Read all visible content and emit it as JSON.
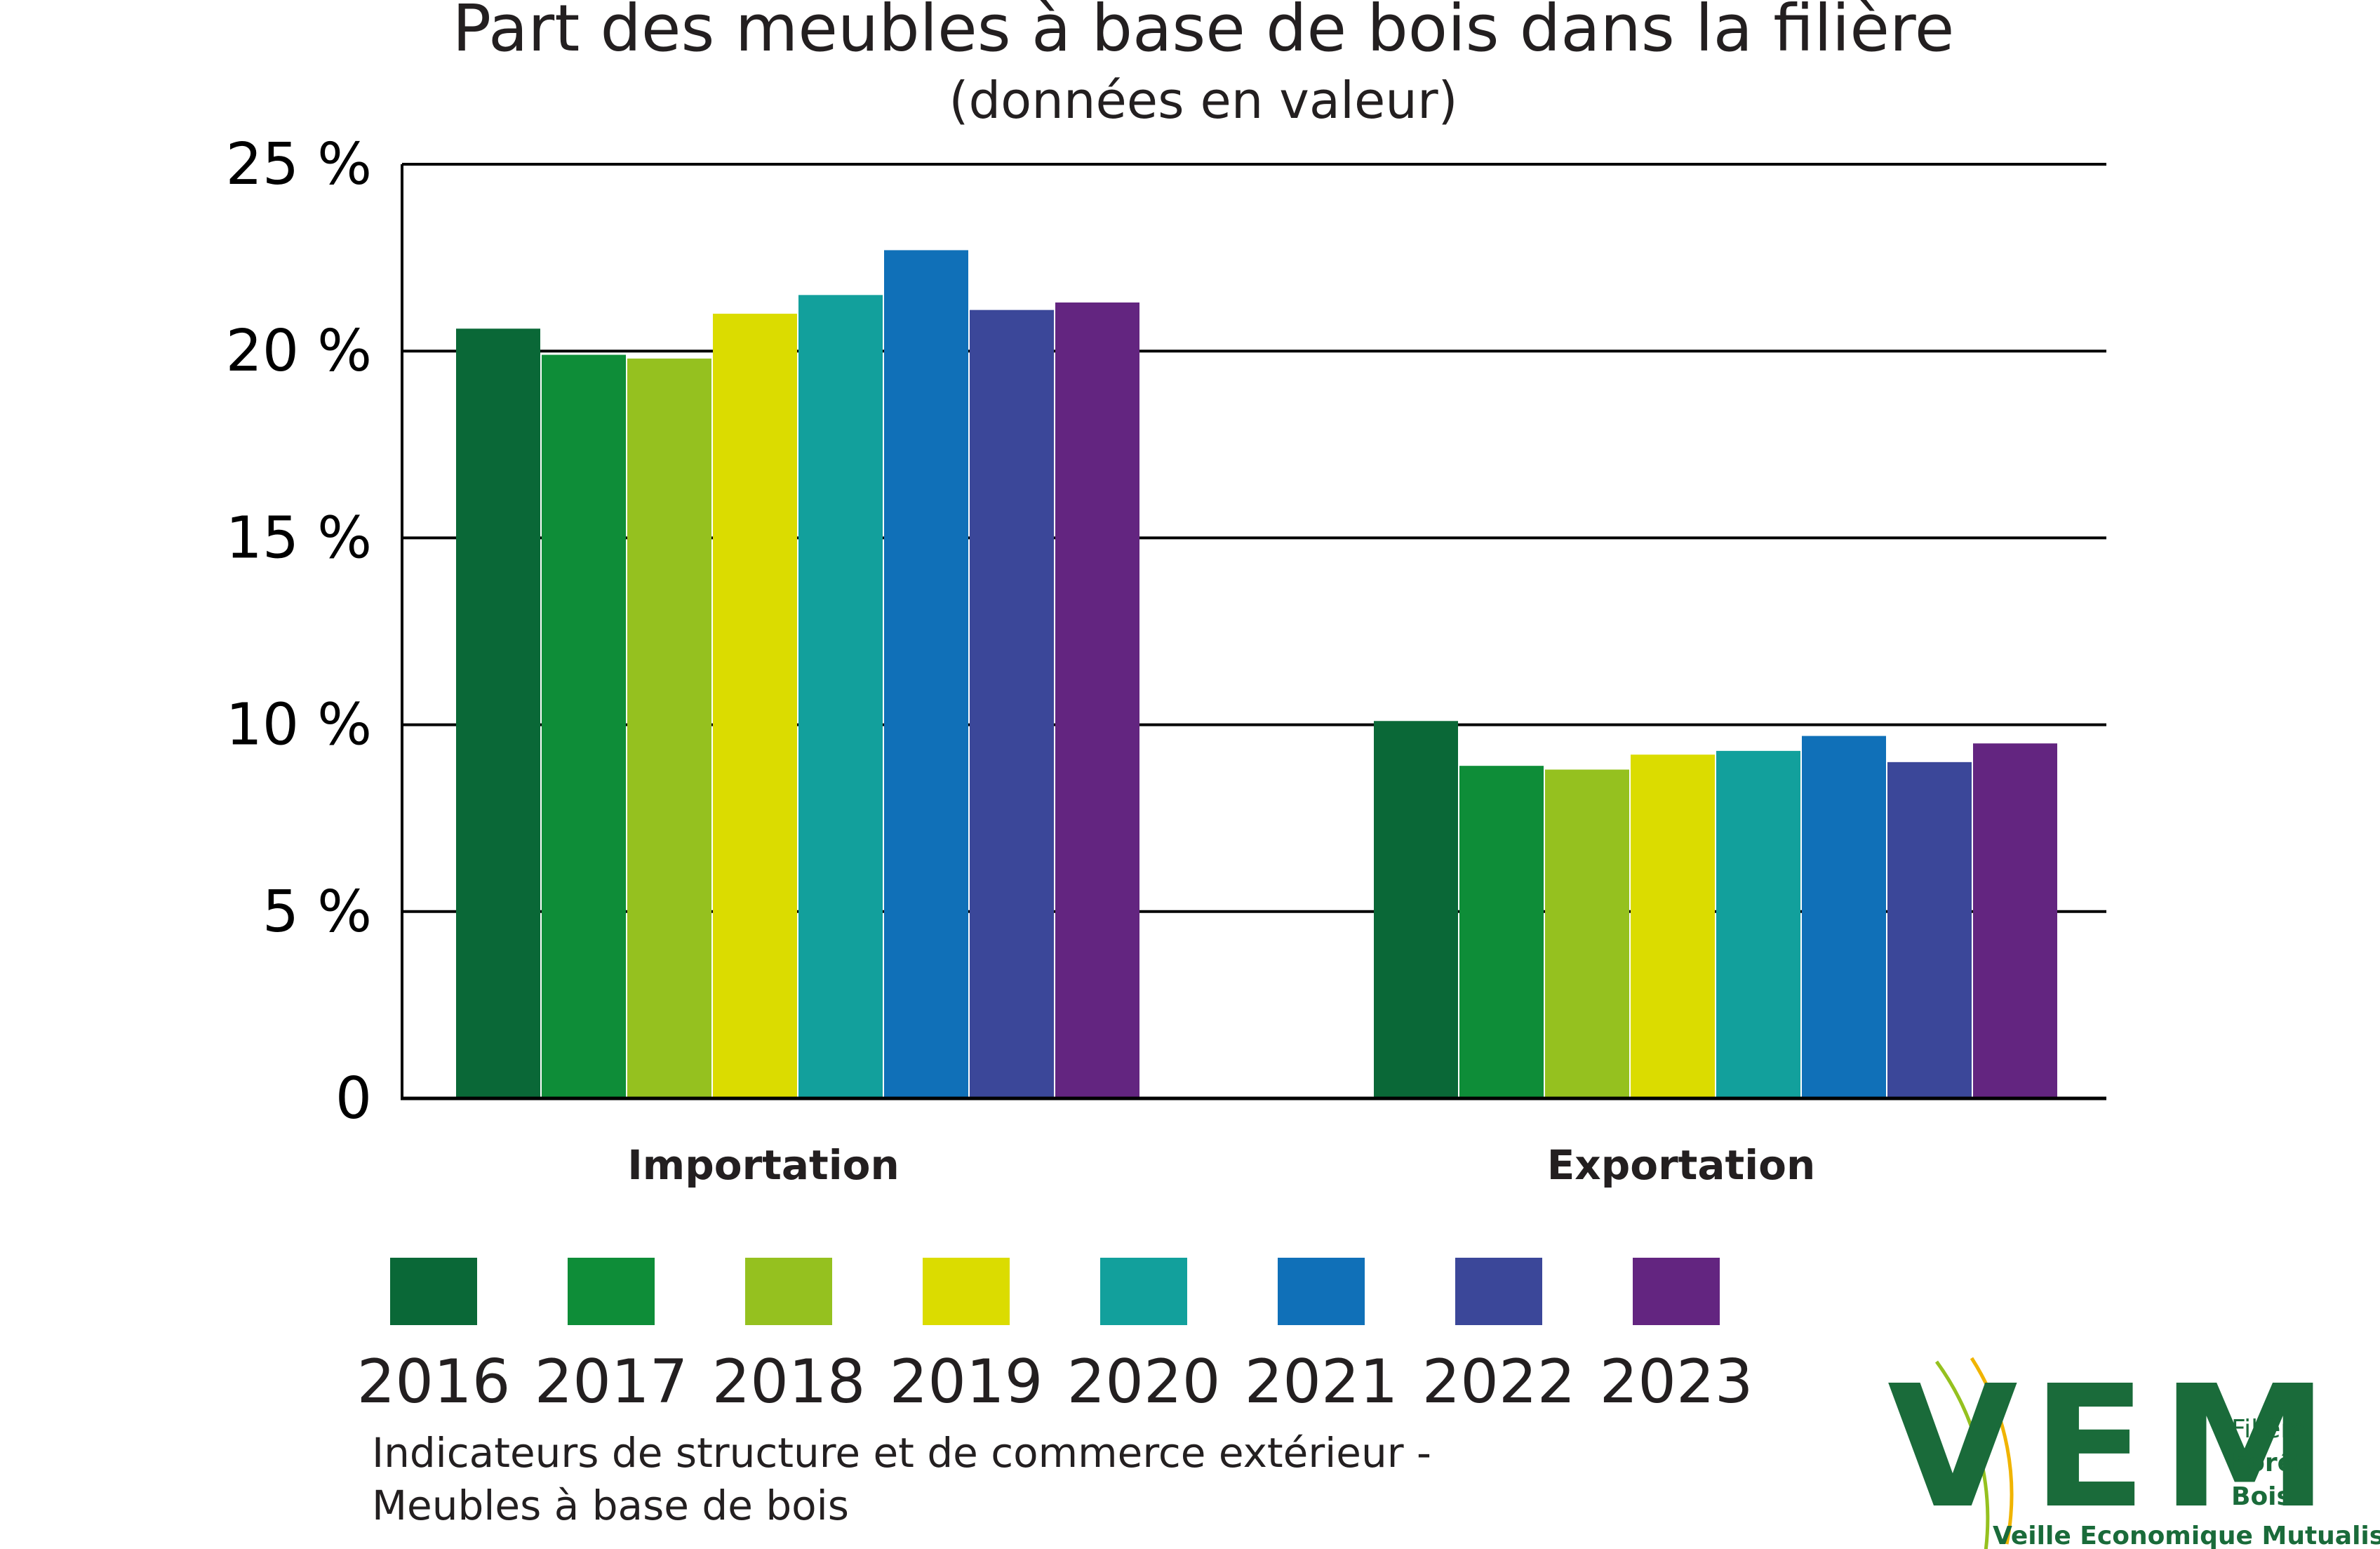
{
  "chart_data": {
    "type": "bar",
    "title": "Part des meubles à base de bois dans la filière",
    "subtitle": "(données en valeur)",
    "categories": [
      "Importation",
      "Exportation"
    ],
    "ylim": [
      0,
      25
    ],
    "yticks": [
      "0",
      "5 %",
      "10 %",
      "15 %",
      "20 %",
      "25 %"
    ],
    "grid": true,
    "legend_position": "bottom",
    "series": [
      {
        "name": "2016",
        "color": "#0a6837",
        "values": [
          20.6,
          10.1
        ]
      },
      {
        "name": "2017",
        "color": "#0e8d38",
        "values": [
          19.9,
          8.9
        ]
      },
      {
        "name": "2018",
        "color": "#95c11f",
        "values": [
          19.8,
          8.8
        ]
      },
      {
        "name": "2019",
        "color": "#dbdc00",
        "values": [
          21.0,
          9.2
        ]
      },
      {
        "name": "2020",
        "color": "#12a09c",
        "values": [
          21.5,
          9.3
        ]
      },
      {
        "name": "2021",
        "color": "#1070b8",
        "values": [
          22.7,
          9.7
        ]
      },
      {
        "name": "2022",
        "color": "#3b4799",
        "values": [
          21.1,
          9.0
        ]
      },
      {
        "name": "2023",
        "color": "#632580",
        "values": [
          21.3,
          9.5
        ]
      }
    ]
  },
  "source": {
    "line1": "Indicateurs de structure et de commerce extérieur -",
    "line2": "Meubles à base de bois"
  },
  "logo": {
    "letters": "VEM",
    "line1": "Filière",
    "line2": "Forêt",
    "line3": "Bois",
    "tagline": "Veille Economique Mutualisée"
  }
}
